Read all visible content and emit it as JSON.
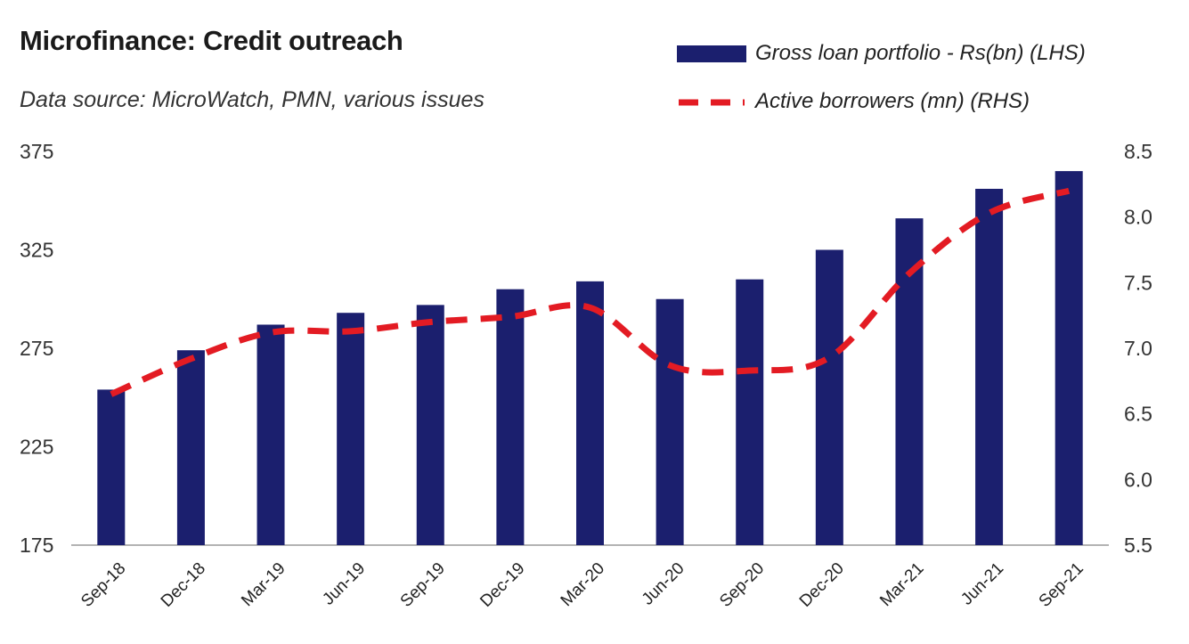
{
  "chart_data": {
    "type": "bar",
    "title": "Microfinance: Credit outreach",
    "subtitle": "Data source: MicroWatch, PMN, various issues",
    "categories": [
      "Sep-18",
      "Dec-18",
      "Mar-19",
      "Jun-19",
      "Sep-19",
      "Dec-19",
      "Mar-20",
      "Jun-20",
      "Sep-20",
      "Dec-20",
      "Mar-21",
      "Jun-21",
      "Sep-21"
    ],
    "series": [
      {
        "name": "Gross loan portfolio - Rs(bn) (LHS)",
        "type": "bar",
        "axis": "left",
        "color": "#1b1f6e",
        "values": [
          254,
          274,
          287,
          293,
          297,
          305,
          309,
          300,
          310,
          325,
          341,
          356,
          365
        ]
      },
      {
        "name": "Active borrowers (mn) (RHS)",
        "type": "line",
        "style": "dashed",
        "axis": "right",
        "color": "#e31b23",
        "values": [
          6.65,
          6.92,
          7.12,
          7.13,
          7.2,
          7.24,
          7.31,
          6.87,
          6.83,
          6.93,
          7.57,
          8.03,
          8.2
        ]
      }
    ],
    "ylim_left": [
      175,
      375
    ],
    "yticks_left": [
      "375",
      "325",
      "275",
      "225",
      "175"
    ],
    "ylim_right": [
      5.5,
      8.5
    ],
    "yticks_right": [
      "8.5",
      "8.0",
      "7.5",
      "7.0",
      "6.5",
      "6.0",
      "5.5"
    ],
    "legend_position": "top-right",
    "grid": false
  }
}
